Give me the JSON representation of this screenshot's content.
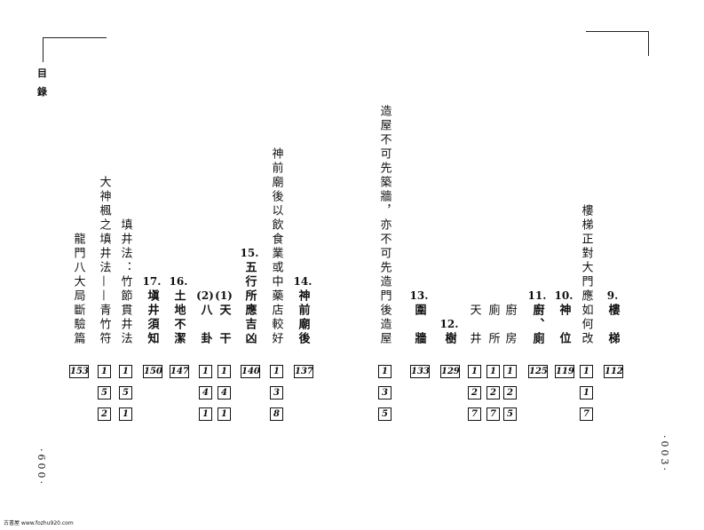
{
  "header": {
    "label_1": "目",
    "label_2": "錄"
  },
  "left_page": {
    "entries": [
      {
        "title": "龍門八大局斷驗篇",
        "page": "153"
      },
      {
        "title": "大神楓之填井法——青竹符",
        "page_digits": [
          "1",
          "5",
          "2"
        ]
      },
      {
        "title": "填井法：竹節貫井法",
        "page_digits": [
          "1",
          "5",
          "1"
        ]
      },
      {
        "number": "17.",
        "title": "塡井須知",
        "page": "150"
      },
      {
        "number": "16.",
        "title": "土地不潔",
        "page": "147"
      },
      {
        "number": "(2)",
        "title": "八　卦",
        "page_digits": [
          "1",
          "4",
          "1"
        ]
      },
      {
        "number": "(1)",
        "title": "天　干",
        "page_digits": [
          "1",
          "4",
          "1"
        ]
      },
      {
        "number": "15.",
        "title": "五行所應吉凶",
        "page": "140"
      },
      {
        "title": "神前廟後以飲食業或中藥店較好",
        "page_digits": [
          "1",
          "3",
          "8"
        ]
      },
      {
        "number": "14.",
        "title": "神前廟後",
        "page": "137"
      }
    ],
    "page_number": "·600·"
  },
  "right_page": {
    "entries": [
      {
        "title": "造屋不可先築牆，亦不可先造門後造屋",
        "page_digits": [
          "1",
          "3",
          "5"
        ]
      },
      {
        "number": "13.",
        "title": "圍　牆",
        "page": "133"
      },
      {
        "number": "12.",
        "title": "樹",
        "page": "129"
      },
      {
        "title": "天　井",
        "page_digits": [
          "1",
          "2",
          "7"
        ]
      },
      {
        "title": "廁　所",
        "page_digits": [
          "1",
          "2",
          "7"
        ]
      },
      {
        "title": "廚　房",
        "page_digits": [
          "1",
          "2",
          "5"
        ]
      },
      {
        "number": "11.",
        "title": "廚、廁",
        "page": "125"
      },
      {
        "number": "10.",
        "title": "神　位",
        "page": "119"
      },
      {
        "title": "樓梯正對大門應如何改",
        "page_digits": [
          "1",
          "1",
          "7"
        ]
      },
      {
        "number": "9.",
        "title": "樓　梯",
        "page": "112"
      }
    ],
    "page_number": "·003·"
  },
  "footer": {
    "watermark": "古書屋 www.fozhu920.com"
  }
}
